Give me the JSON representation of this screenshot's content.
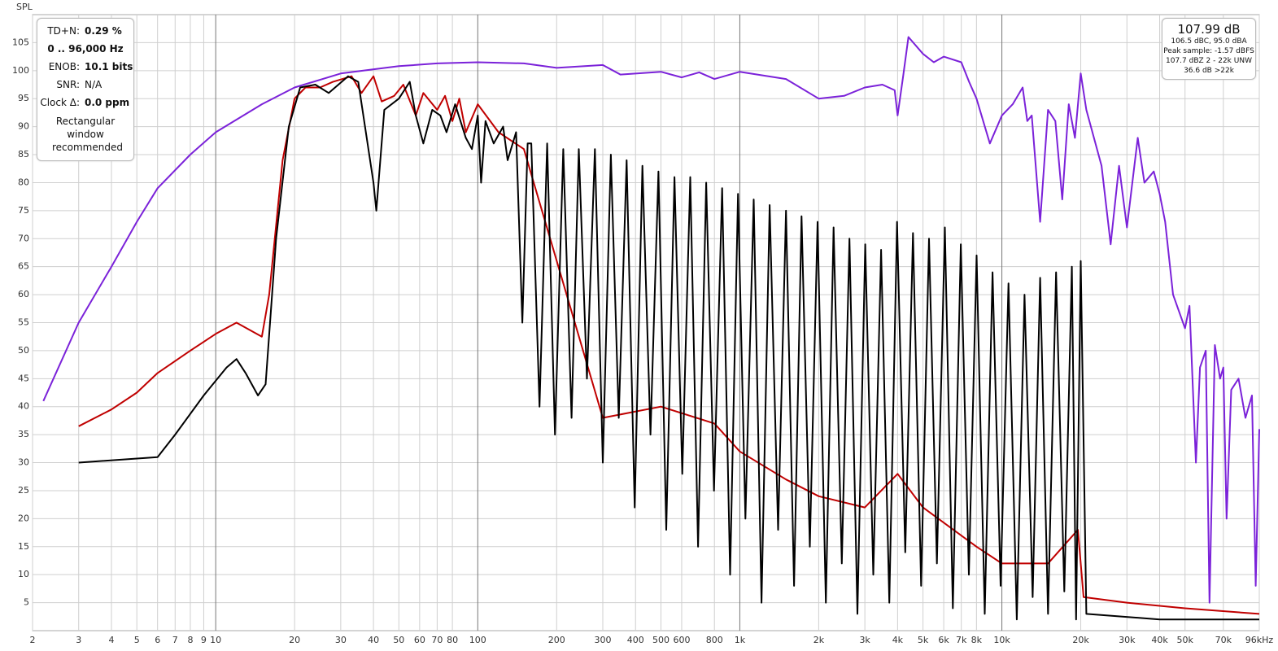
{
  "chart_data": {
    "type": "line",
    "y_label": "SPL",
    "log_x": true,
    "grid": true,
    "xlim": [
      2,
      96000
    ],
    "ylim": [
      0,
      110
    ],
    "xticks": [
      2,
      3,
      4,
      5,
      6,
      7,
      8,
      9,
      10,
      20,
      30,
      40,
      50,
      60,
      70,
      80,
      100,
      200,
      300,
      400,
      500,
      600,
      800,
      {
        "value": 1000,
        "label": "1k"
      },
      {
        "value": 2000,
        "label": "2k"
      },
      {
        "value": 3000,
        "label": "3k"
      },
      {
        "value": 4000,
        "label": "4k"
      },
      {
        "value": 5000,
        "label": "5k"
      },
      {
        "value": 6000,
        "label": "6k"
      },
      {
        "value": 7000,
        "label": "7k"
      },
      {
        "value": 8000,
        "label": "8k"
      },
      {
        "value": 10000,
        "label": "10k"
      },
      {
        "value": 20000,
        "label": "20k"
      },
      {
        "value": 30000,
        "label": "30k"
      },
      {
        "value": 40000,
        "label": "40k"
      },
      {
        "value": 50000,
        "label": "50k"
      },
      {
        "value": 70000,
        "label": "70k"
      },
      {
        "value": 96000,
        "label": "96kHz"
      }
    ],
    "yticks": [
      5,
      10,
      15,
      20,
      25,
      30,
      35,
      40,
      45,
      50,
      55,
      60,
      65,
      70,
      75,
      80,
      85,
      90,
      95,
      100,
      105
    ],
    "series": [
      {
        "color": "#7b22d9",
        "x": [
          2.2,
          3,
          4,
          5,
          6,
          8,
          10,
          15,
          20,
          30,
          50,
          70,
          100,
          150,
          200,
          300,
          350,
          500,
          600,
          700,
          800,
          1000,
          1500,
          2000,
          2500,
          3000,
          3500,
          3900,
          4000,
          4200,
          4400,
          5000,
          5500,
          6000,
          7000,
          7500,
          8000,
          9000,
          10000,
          11000,
          12000,
          12500,
          13000,
          14000,
          15000,
          16000,
          17000,
          18000,
          19000,
          20000,
          21000,
          24000,
          26000,
          28000,
          30000,
          33000,
          35000,
          38000,
          40000,
          42000,
          45000,
          50000,
          52000,
          55000,
          57000,
          60000,
          62000,
          65000,
          68000,
          70000,
          72000,
          75000,
          80000,
          85000,
          90000,
          93000,
          96000
        ],
        "values": [
          41,
          55,
          65,
          73,
          79,
          85,
          89,
          94,
          97,
          99.5,
          100.8,
          101.3,
          101.5,
          101.3,
          100.5,
          101,
          99.3,
          99.8,
          98.8,
          99.7,
          98.5,
          99.8,
          98.5,
          95,
          95.5,
          97,
          97.5,
          96.5,
          92,
          99,
          106,
          103,
          101.5,
          102.5,
          101.5,
          98,
          95,
          87,
          92,
          94,
          97,
          91,
          92,
          73,
          93,
          91,
          77,
          94,
          88,
          99.5,
          93,
          83,
          69,
          83,
          72,
          88,
          80,
          82,
          78,
          73,
          60,
          54,
          58,
          30,
          47,
          50,
          5,
          51,
          45,
          47,
          20,
          43,
          45,
          38,
          42,
          8,
          36
        ]
      },
      {
        "color": "#c00000",
        "x": [
          3,
          4,
          5,
          6,
          8,
          10,
          12,
          15,
          16,
          18,
          20,
          22,
          25,
          28,
          33,
          36,
          40,
          43,
          48,
          52,
          58,
          62,
          70,
          75,
          80,
          85,
          90,
          100,
          120,
          150,
          300,
          500,
          800,
          1000,
          1500,
          2000,
          3000,
          4000,
          5000,
          8000,
          10000,
          15000,
          19500,
          20500,
          30000,
          50000,
          96000
        ],
        "values": [
          36.5,
          39.5,
          42.5,
          46,
          50,
          53,
          55,
          52.5,
          60,
          84,
          95,
          97,
          97,
          98,
          99,
          96,
          99,
          94.5,
          95.5,
          97.5,
          92,
          96,
          93,
          95.5,
          91,
          95,
          89,
          94,
          89,
          86,
          38,
          40,
          37,
          32,
          27,
          24,
          22,
          28,
          22,
          15,
          12,
          12,
          18,
          6,
          5,
          4,
          3
        ]
      },
      {
        "color": "#000000",
        "x": [
          3,
          6,
          7,
          9,
          11,
          12,
          13,
          14.5,
          15.5,
          17,
          19,
          21,
          24,
          27,
          32,
          35,
          40,
          41,
          44,
          50,
          55,
          58,
          62,
          67,
          72,
          76,
          82,
          90,
          95,
          100,
          103,
          107,
          115,
          125,
          130,
          140,
          148,
          155,
          160,
          172,
          184,
          197,
          212,
          228,
          243,
          261,
          280,
          300,
          322,
          345,
          370,
          397,
          425,
          456,
          489,
          524,
          563,
          603,
          647,
          693,
          744,
          797,
          856,
          918,
          984,
          1050,
          1130,
          1210,
          1300,
          1400,
          1500,
          1610,
          1720,
          1850,
          1980,
          2130,
          2280,
          2450,
          2620,
          2810,
          3010,
          3230,
          3460,
          3720,
          3980,
          4280,
          4580,
          4920,
          5270,
          5650,
          6060,
          6500,
          6970,
          7480,
          8010,
          8600,
          9210,
          9890,
          10600,
          11400,
          12200,
          13100,
          14000,
          15000,
          16100,
          17300,
          18500,
          19200,
          20000,
          21000,
          40000,
          96000
        ],
        "values": [
          30,
          31,
          35,
          42,
          47,
          48.5,
          46,
          42,
          44,
          70,
          90,
          97,
          97.5,
          96,
          99,
          98,
          80,
          75,
          93,
          95,
          98,
          92,
          87,
          93,
          92,
          89,
          94,
          88,
          86,
          92,
          80,
          91,
          87,
          90,
          84,
          89,
          55,
          87,
          87,
          40,
          87,
          35,
          86,
          38,
          86,
          45,
          86,
          30,
          85,
          38,
          84,
          22,
          83,
          35,
          82,
          18,
          81,
          28,
          81,
          15,
          80,
          25,
          79,
          10,
          78,
          20,
          77,
          5,
          76,
          18,
          75,
          8,
          74,
          15,
          73,
          5,
          72,
          12,
          70,
          3,
          69,
          10,
          68,
          5,
          73,
          14,
          71,
          8,
          70,
          12,
          72,
          4,
          69,
          10,
          67,
          3,
          64,
          8,
          62,
          2,
          60,
          6,
          63,
          3,
          64,
          7,
          65,
          2,
          66,
          3,
          2,
          2
        ]
      }
    ],
    "info_panel": {
      "rows": [
        [
          "TD+N:",
          "0.29 %"
        ]
      ],
      "range": "0 .. 96,000 Hz",
      "rows2": [
        [
          "ENOB:",
          "10.1 bits"
        ],
        [
          "SNR:",
          "N/A"
        ],
        [
          "Clock Δ:",
          "0.0 ppm"
        ]
      ],
      "note": "Rectangular window recommended"
    },
    "level_panel": {
      "level": "107.99 dB",
      "lines": [
        "106.5 dBC, 95.0 dBA",
        "Peak sample: -1.57 dBFS",
        "107.7 dBZ 2 - 22k UNW",
        "36.6 dB >22k"
      ]
    }
  }
}
